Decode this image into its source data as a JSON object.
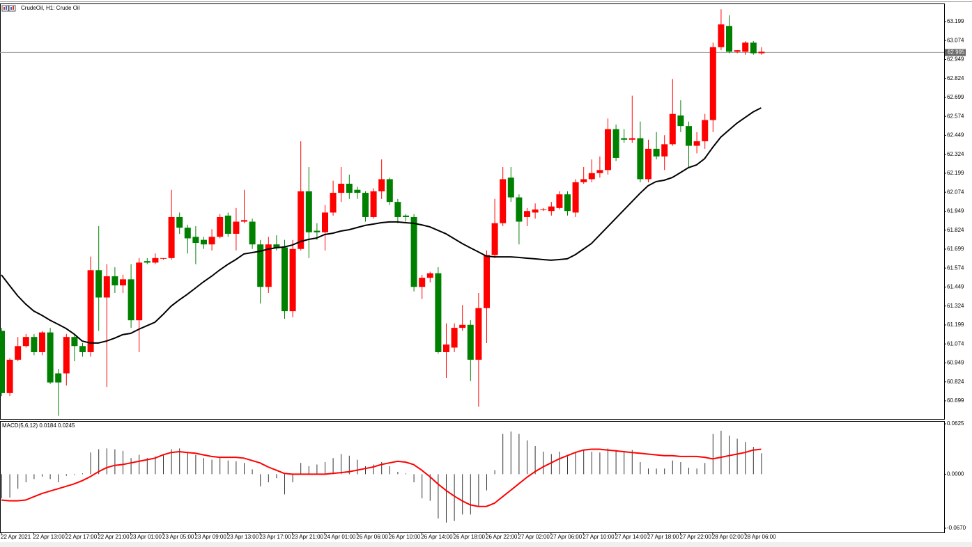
{
  "chart_data": [
    {
      "type": "candlestick",
      "title": "CrudeOil, H1:  Crude Oil",
      "up_color": "#ff0000",
      "down_color": "#008000",
      "categories": [
        "22 Apr 2021",
        null,
        null,
        null,
        "22 Apr 13:00",
        null,
        null,
        null,
        "22 Apr 17:00",
        null,
        null,
        null,
        "22 Apr 21:00",
        null,
        null,
        null,
        "23 Apr 01:00",
        null,
        null,
        null,
        "23 Apr 05:00",
        null,
        null,
        null,
        "23 Apr 09:00",
        null,
        null,
        null,
        "23 Apr 13:00",
        null,
        null,
        null,
        "23 Apr 17:00",
        null,
        null,
        null,
        "23 Apr 21:00",
        null,
        null,
        null,
        "24 Apr 01:00",
        null,
        null,
        null,
        "26 Apr 06:00",
        null,
        null,
        null,
        "26 Apr 10:00",
        null,
        null,
        null,
        "26 Apr 14:00",
        null,
        null,
        null,
        "26 Apr 18:00",
        null,
        null,
        null,
        "26 Apr 22:00",
        null,
        null,
        null,
        "27 Apr 02:00",
        null,
        null,
        null,
        "27 Apr 06:00",
        null,
        null,
        null,
        "27 Apr 10:00",
        null,
        null,
        null,
        "27 Apr 14:00",
        null,
        null,
        null,
        "27 Apr 18:00",
        null,
        null,
        null,
        "27 Apr 22:00",
        null,
        null,
        null,
        "28 Apr 02:00",
        null,
        null,
        null,
        "28 Apr 06:00",
        null,
        null
      ],
      "open": [
        61.16,
        60.75,
        60.97,
        61.06,
        61.12,
        61.02,
        61.15,
        60.88,
        60.88,
        61.12,
        61.06,
        61.02,
        61.56,
        61.38,
        61.52,
        61.46,
        61.5,
        61.23,
        61.62,
        61.61,
        61.64,
        61.64,
        61.91,
        61.84,
        61.78,
        61.76,
        61.73,
        61.78,
        61.92,
        61.8,
        61.88,
        61.88,
        61.73,
        61.45,
        61.73,
        61.71,
        61.29,
        61.7,
        62.08,
        61.82,
        61.81,
        61.94,
        62.07,
        62.13,
        62.09,
        62.07,
        61.91,
        62.08,
        62.16,
        62.01,
        61.92,
        61.91,
        61.45,
        61.51,
        61.54,
        61.02,
        61.05,
        61.18,
        61.2,
        60.97,
        61.31,
        61.66,
        61.87,
        62.17,
        62.04,
        61.91,
        61.94,
        61.96,
        61.95,
        61.97,
        62.06,
        61.94,
        62.14,
        62.16,
        62.2,
        62.22,
        62.49,
        62.43,
        62.42,
        62.43,
        62.16,
        62.36,
        62.31,
        62.39,
        62.58,
        62.51,
        62.38,
        62.41,
        62.55,
        63.03,
        63.17,
        63.0,
        63.0,
        63.06,
        62.99
      ],
      "high": [
        61.18,
        60.98,
        61.12,
        61.14,
        61.14,
        61.16,
        61.18,
        60.91,
        61.14,
        61.14,
        61.08,
        61.65,
        61.85,
        61.6,
        61.58,
        61.53,
        61.6,
        61.64,
        61.64,
        61.67,
        61.64,
        62.09,
        61.94,
        61.86,
        61.85,
        61.78,
        61.83,
        61.93,
        61.94,
        61.97,
        62.09,
        61.9,
        61.76,
        61.78,
        61.79,
        61.76,
        61.76,
        62.41,
        62.24,
        61.87,
        61.99,
        62.15,
        62.24,
        62.19,
        62.11,
        62.08,
        62.1,
        62.29,
        62.17,
        62.03,
        61.93,
        61.93,
        61.53,
        61.55,
        61.58,
        61.21,
        61.21,
        61.33,
        61.23,
        61.41,
        61.69,
        62.03,
        62.24,
        62.24,
        62.06,
        61.97,
        62.0,
        61.97,
        62.01,
        62.08,
        62.08,
        62.16,
        62.24,
        62.29,
        62.31,
        62.56,
        62.52,
        62.49,
        62.71,
        62.54,
        62.42,
        62.47,
        62.45,
        62.82,
        62.68,
        62.54,
        62.47,
        62.59,
        63.06,
        63.28,
        63.24,
        63.01,
        63.07,
        63.07,
        63.03
      ],
      "low": [
        60.73,
        60.73,
        60.96,
        61.05,
        61.0,
        61.0,
        60.81,
        60.6,
        60.8,
        60.96,
        60.99,
        60.99,
        61.16,
        60.79,
        61.41,
        61.41,
        61.18,
        61.02,
        61.6,
        61.6,
        61.63,
        61.63,
        61.8,
        61.67,
        61.6,
        61.7,
        61.69,
        61.77,
        61.78,
        61.69,
        61.87,
        61.7,
        61.34,
        61.41,
        61.69,
        61.24,
        61.25,
        61.69,
        61.64,
        61.76,
        61.69,
        61.92,
        62.01,
        62.03,
        62.03,
        61.88,
        61.9,
        62.03,
        61.99,
        61.87,
        61.88,
        61.42,
        61.37,
        61.48,
        61.01,
        60.85,
        61.02,
        61.16,
        60.83,
        60.66,
        61.08,
        61.64,
        61.85,
        62.01,
        61.73,
        61.85,
        61.9,
        61.95,
        61.92,
        61.96,
        61.92,
        61.91,
        62.13,
        62.14,
        62.17,
        62.19,
        62.28,
        62.4,
        62.4,
        62.14,
        62.14,
        62.29,
        62.22,
        62.38,
        62.47,
        62.24,
        62.33,
        62.36,
        62.47,
        63.01,
        62.99,
        62.99,
        62.98,
        62.98,
        62.98
      ],
      "close": [
        60.75,
        60.97,
        61.06,
        61.12,
        61.02,
        61.15,
        60.82,
        60.82,
        61.12,
        61.06,
        61.02,
        61.56,
        61.38,
        61.52,
        61.46,
        61.5,
        61.23,
        61.61,
        61.61,
        61.64,
        61.64,
        61.91,
        61.84,
        61.77,
        61.74,
        61.73,
        61.78,
        61.91,
        61.8,
        61.88,
        61.89,
        61.73,
        61.45,
        61.73,
        61.71,
        61.29,
        61.7,
        62.08,
        61.81,
        61.81,
        61.94,
        62.07,
        62.13,
        62.07,
        62.07,
        61.91,
        62.08,
        62.16,
        62.01,
        61.91,
        61.91,
        61.45,
        61.51,
        61.54,
        61.02,
        61.07,
        61.18,
        61.2,
        60.97,
        61.31,
        61.66,
        61.87,
        62.16,
        62.04,
        61.88,
        61.95,
        61.96,
        61.96,
        61.98,
        62.06,
        61.95,
        62.14,
        62.16,
        62.2,
        62.22,
        62.49,
        62.3,
        62.42,
        62.43,
        62.16,
        62.36,
        62.31,
        62.39,
        62.59,
        62.51,
        62.38,
        62.41,
        62.55,
        63.03,
        63.18,
        63.0,
        63.01,
        63.06,
        62.99,
        63.0
      ],
      "moving_average": {
        "color": "#000000",
        "values": [
          61.529,
          61.46,
          61.392,
          61.337,
          61.291,
          61.263,
          61.231,
          61.204,
          61.176,
          61.139,
          61.093,
          61.08,
          61.08,
          61.093,
          61.112,
          61.135,
          61.144,
          61.171,
          61.194,
          61.217,
          61.268,
          61.323,
          61.364,
          61.401,
          61.442,
          61.483,
          61.52,
          61.561,
          61.598,
          61.63,
          61.667,
          61.676,
          61.685,
          61.699,
          61.708,
          61.713,
          61.726,
          61.749,
          61.763,
          61.772,
          61.795,
          61.804,
          61.818,
          61.827,
          61.841,
          61.855,
          61.864,
          61.873,
          61.878,
          61.878,
          61.873,
          61.869,
          61.859,
          61.846,
          61.823,
          61.8,
          61.768,
          61.736,
          61.708,
          61.681,
          61.653,
          61.648,
          61.648,
          61.648,
          61.644,
          61.639,
          61.635,
          61.63,
          61.626,
          61.63,
          61.635,
          61.662,
          61.699,
          61.736,
          61.791,
          61.846,
          61.901,
          61.956,
          62.011,
          62.066,
          62.116,
          62.144,
          62.153,
          62.171,
          62.203,
          62.236,
          62.254,
          62.295,
          62.369,
          62.437,
          62.483,
          62.529,
          62.566,
          62.603,
          62.63
        ]
      },
      "last_price": 62.995,
      "ylim": [
        60.575,
        63.318
      ],
      "yticks": [
        63.199,
        63.074,
        62.949,
        62.824,
        62.699,
        62.574,
        62.449,
        62.324,
        62.199,
        62.074,
        61.949,
        61.824,
        61.699,
        61.574,
        61.449,
        61.324,
        61.199,
        61.074,
        60.949,
        60.824,
        60.699
      ],
      "grid": false
    },
    {
      "type": "macd",
      "title": "MACD(5,6,12) 0.0184 0.0245",
      "histogram": {
        "color": "#333333",
        "values": [
          -0.03,
          -0.029,
          -0.018,
          -0.01,
          -0.006,
          -0.003,
          -0.006,
          -0.01,
          -0.002,
          -0.001,
          0.001,
          0.027,
          0.031,
          0.032,
          0.031,
          0.029,
          0.02,
          0.024,
          0.02,
          0.022,
          0.024,
          0.031,
          0.032,
          0.028,
          0.024,
          0.02,
          0.018,
          0.02,
          0.017,
          0.016,
          0.014,
          0.006,
          -0.015,
          -0.01,
          -0.005,
          -0.025,
          -0.01,
          0.014,
          0.01,
          0.012,
          0.015,
          0.02,
          0.025,
          0.023,
          0.018,
          0.01,
          0.012,
          0.015,
          0.01,
          0.003,
          0.001,
          -0.01,
          -0.03,
          -0.033,
          -0.055,
          -0.06,
          -0.058,
          -0.05,
          -0.05,
          -0.04,
          -0.02,
          0.005,
          0.05,
          0.053,
          0.05,
          0.042,
          0.035,
          0.028,
          0.025,
          0.028,
          0.022,
          0.028,
          0.03,
          0.028,
          0.027,
          0.032,
          0.03,
          0.027,
          0.03,
          0.015,
          0.007,
          0.007,
          0.007,
          0.017,
          0.015,
          0.008,
          0.007,
          0.014,
          0.05,
          0.054,
          0.048,
          0.044,
          0.04,
          0.034,
          0.026
        ]
      },
      "signal": {
        "color": "#ff0000",
        "values": [
          -0.032,
          -0.033,
          -0.033,
          -0.032,
          -0.028,
          -0.024,
          -0.021,
          -0.018,
          -0.015,
          -0.012,
          -0.008,
          -0.003,
          0.003,
          0.008,
          0.011,
          0.012,
          0.014,
          0.016,
          0.018,
          0.02,
          0.024,
          0.027,
          0.028,
          0.027,
          0.026,
          0.024,
          0.022,
          0.021,
          0.021,
          0.021,
          0.02,
          0.017,
          0.014,
          0.009,
          0.005,
          0.001,
          0.0,
          0.0,
          0.0,
          0.0,
          0.0,
          0.001,
          0.002,
          0.003,
          0.005,
          0.007,
          0.009,
          0.012,
          0.014,
          0.016,
          0.015,
          0.012,
          0.005,
          -0.003,
          -0.012,
          -0.02,
          -0.027,
          -0.033,
          -0.038,
          -0.04,
          -0.04,
          -0.036,
          -0.028,
          -0.02,
          -0.012,
          -0.004,
          0.003,
          0.009,
          0.014,
          0.019,
          0.023,
          0.027,
          0.03,
          0.031,
          0.031,
          0.03,
          0.029,
          0.028,
          0.027,
          0.026,
          0.025,
          0.024,
          0.023,
          0.023,
          0.022,
          0.022,
          0.022,
          0.021,
          0.019,
          0.021,
          0.023,
          0.025,
          0.027,
          0.03,
          0.031
        ]
      },
      "ylim": [
        -0.0722,
        0.066
      ],
      "yticks": [
        0.0625,
        {
          "value": 0,
          "label": "0.0000"
        },
        {
          "value": -0.067,
          "label": "-0.0670"
        }
      ]
    }
  ]
}
